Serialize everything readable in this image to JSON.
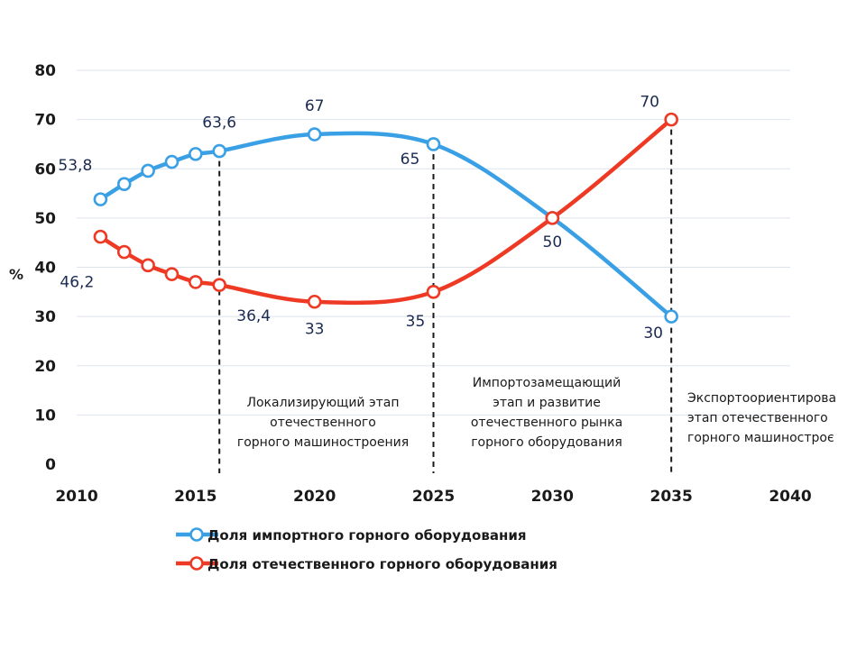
{
  "chart_data": {
    "type": "line",
    "ylabel": "%",
    "xlim": [
      2010,
      2040
    ],
    "ylim": [
      0,
      80
    ],
    "x_ticks": [
      2010,
      2015,
      2020,
      2025,
      2030,
      2035,
      2040
    ],
    "y_ticks": [
      0,
      10,
      20,
      30,
      40,
      50,
      60,
      70,
      80
    ],
    "grid": true,
    "legend_position": "bottom-left",
    "series": [
      {
        "name": "Доля импортного горного оборудования",
        "color": "#3aa0e6",
        "x": [
          2011,
          2012,
          2013,
          2014,
          2015,
          2016,
          2020,
          2025,
          2030,
          2035
        ],
        "y": [
          53.8,
          56.9,
          59.6,
          61.4,
          63.0,
          63.6,
          67,
          65,
          50,
          30
        ]
      },
      {
        "name": "Доля отечественного горного оборудования",
        "color": "#ee3a24",
        "x": [
          2011,
          2012,
          2013,
          2014,
          2015,
          2016,
          2020,
          2025,
          2030,
          2035
        ],
        "y": [
          46.2,
          43.1,
          40.4,
          38.6,
          37.0,
          36.4,
          33,
          35,
          50,
          70
        ]
      }
    ],
    "data_labels": [
      {
        "text": "53,8",
        "x": 2011,
        "y": 53.8,
        "series": 0
      },
      {
        "text": "63,6",
        "x": 2016,
        "y": 63.6,
        "series": 0
      },
      {
        "text": "67",
        "x": 2020,
        "y": 67,
        "series": 0
      },
      {
        "text": "65",
        "x": 2025,
        "y": 65,
        "series": 0
      },
      {
        "text": "50",
        "x": 2030,
        "y": 50,
        "series": 1
      },
      {
        "text": "30",
        "x": 2035,
        "y": 30,
        "series": 0
      },
      {
        "text": "46,2",
        "x": 2011,
        "y": 46.2,
        "series": 1
      },
      {
        "text": "36,4",
        "x": 2016,
        "y": 36.4,
        "series": 1
      },
      {
        "text": "33",
        "x": 2020,
        "y": 33,
        "series": 1
      },
      {
        "text": "35",
        "x": 2025,
        "y": 35,
        "series": 1
      },
      {
        "text": "70",
        "x": 2035,
        "y": 70,
        "series": 1
      }
    ],
    "stage_dividers": [
      2016,
      2025,
      2035
    ],
    "stages": [
      {
        "lines": [
          "Локализирующий  этап",
          "отечественного",
          "горного машиностроения"
        ]
      },
      {
        "lines": [
          "Импортозамещающий",
          "этап  и развитие",
          "отечественного рынка",
          "горного оборудования"
        ]
      },
      {
        "lines": [
          "Экспортоориентирова",
          "этап отечественного",
          "горного машиностроє"
        ]
      }
    ]
  }
}
